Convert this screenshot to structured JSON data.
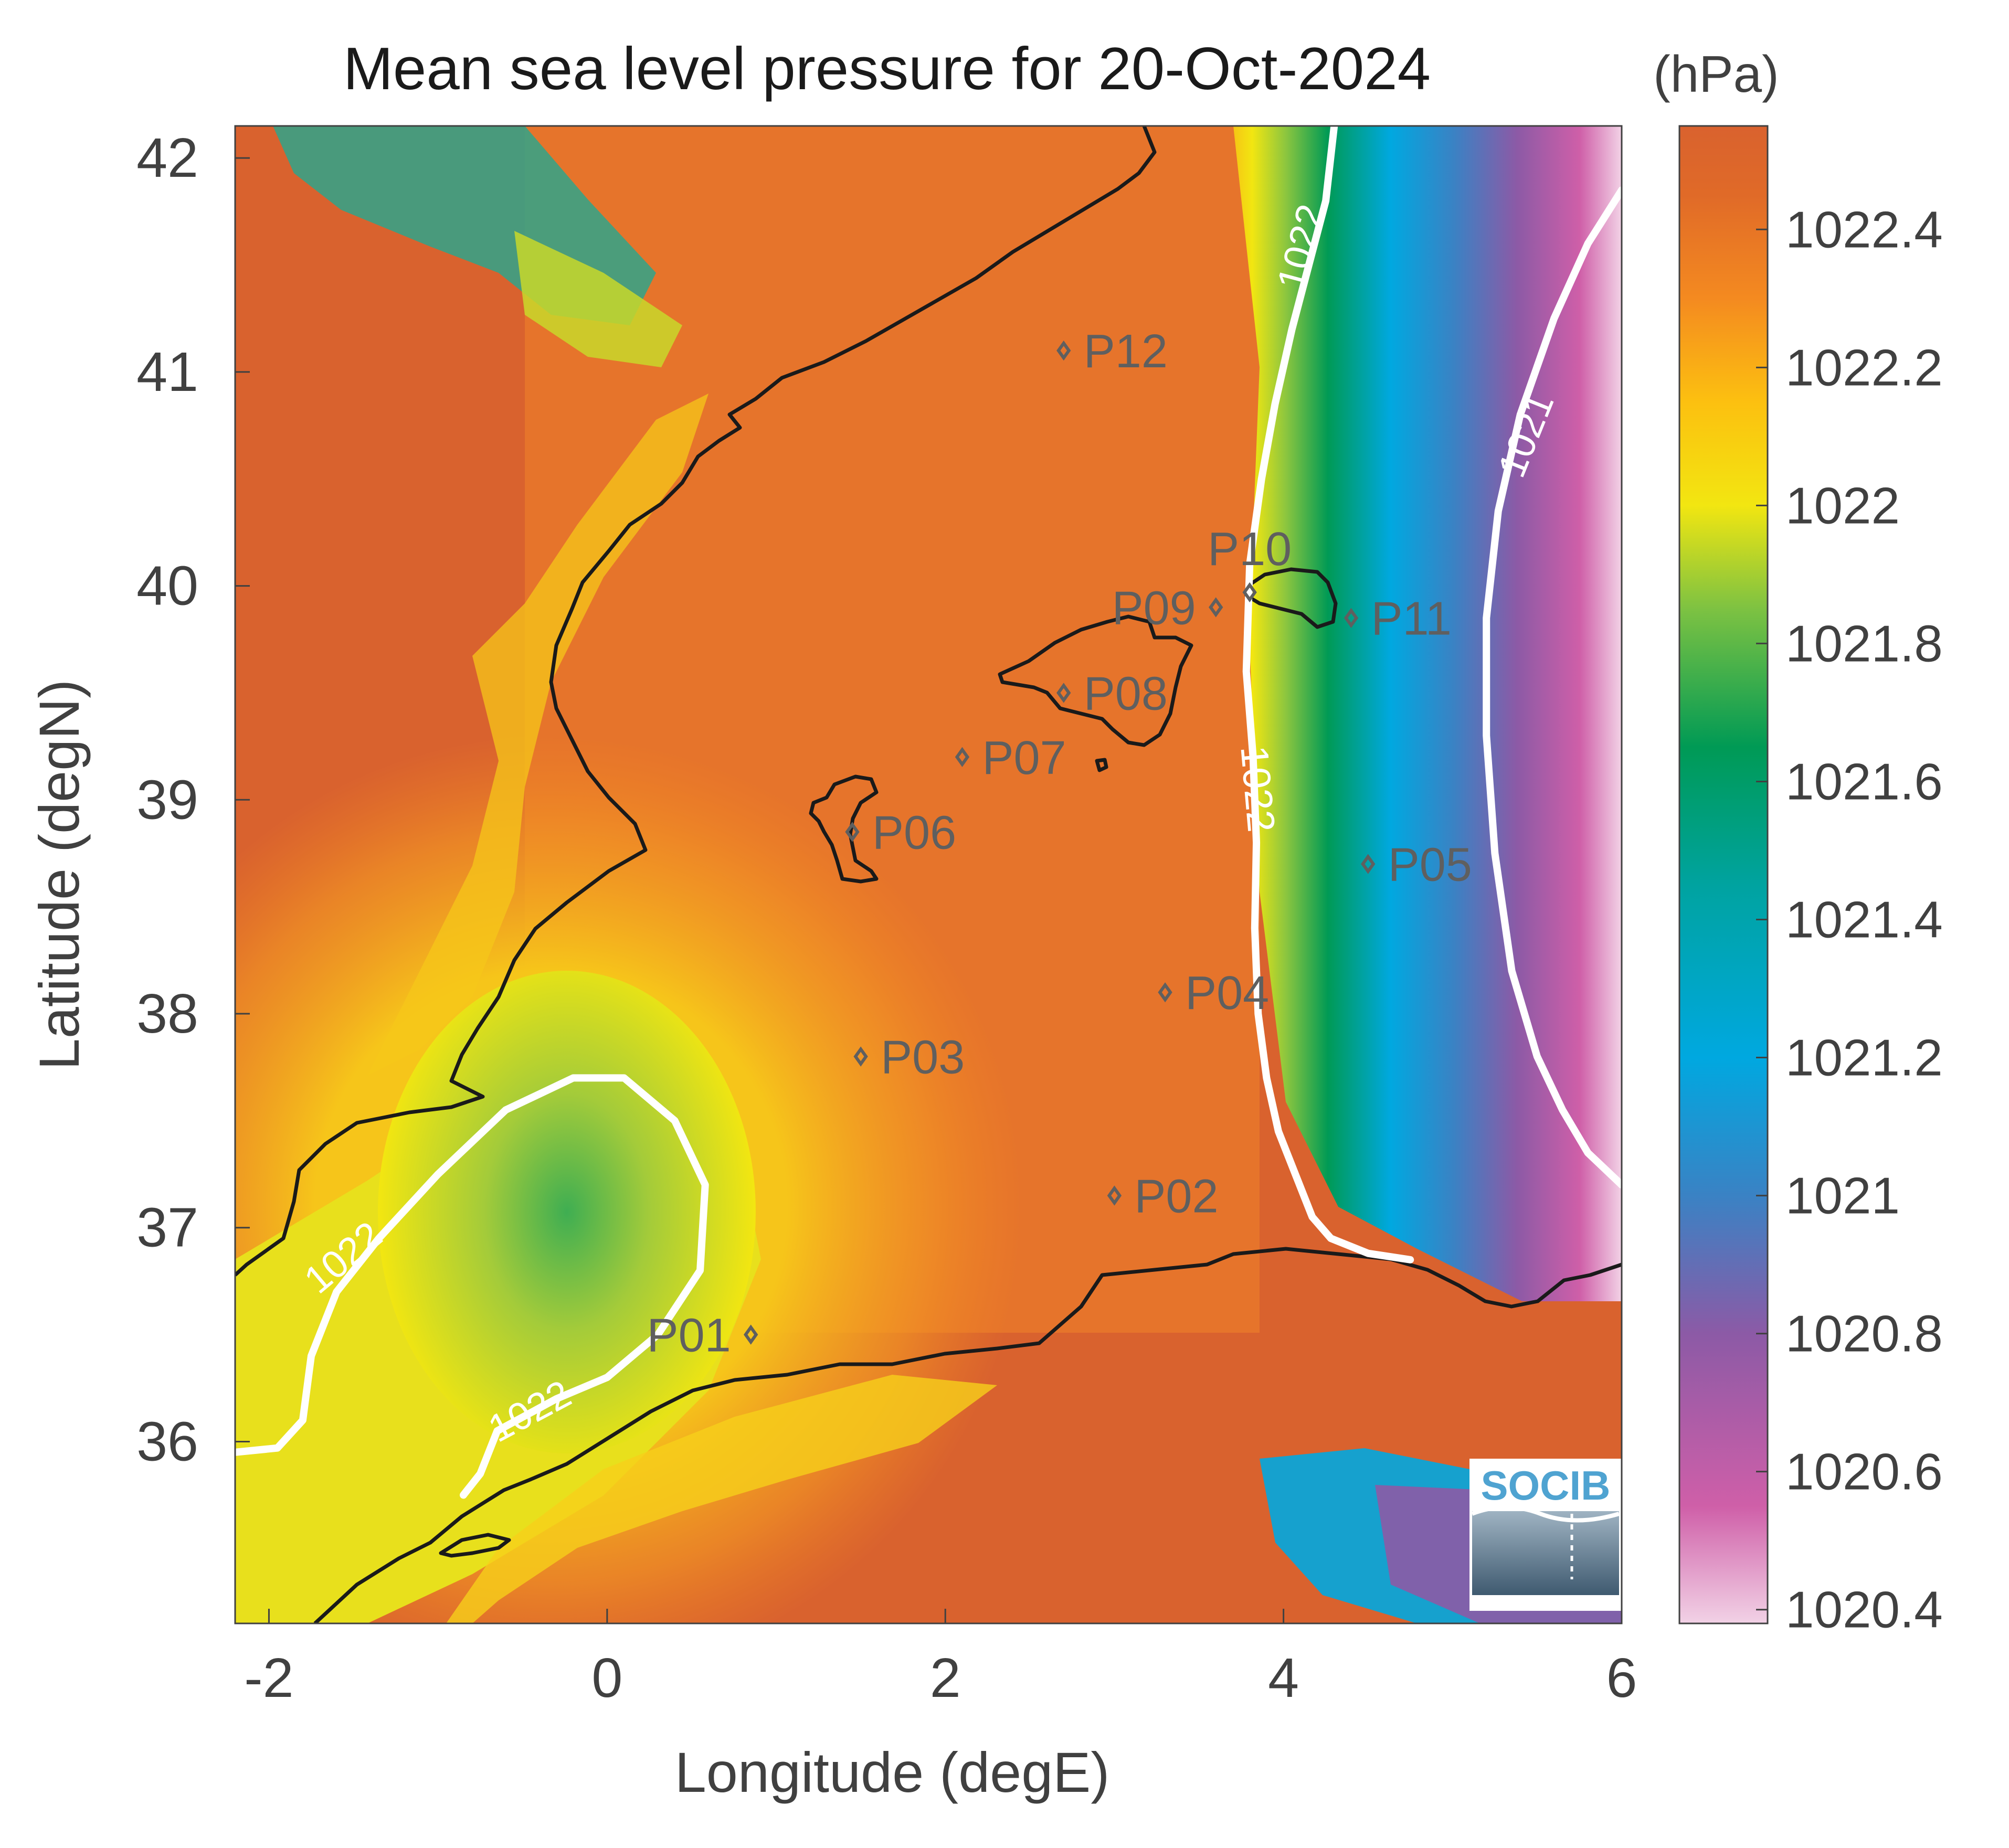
{
  "figure": {
    "title": "Mean sea level pressure for 20-Oct-2024",
    "units": "(hPa)",
    "xlabel": "Longitude (degE)",
    "ylabel": "Latitude (degN)",
    "logo": "SOCIB"
  },
  "chart_data": {
    "type": "heatmap",
    "variable": "mean sea level pressure",
    "xlim": [
      -2.2,
      6.0
    ],
    "ylim": [
      35.15,
      42.15
    ],
    "x_ticks": [
      {
        "value": -2,
        "label": "-2"
      },
      {
        "value": 0,
        "label": "0"
      },
      {
        "value": 2,
        "label": "2"
      },
      {
        "value": 4,
        "label": "4"
      },
      {
        "value": 6,
        "label": "6"
      }
    ],
    "y_ticks": [
      {
        "value": 36,
        "label": "36"
      },
      {
        "value": 37,
        "label": "37"
      },
      {
        "value": 38,
        "label": "38"
      },
      {
        "value": 39,
        "label": "39"
      },
      {
        "value": 40,
        "label": "40"
      },
      {
        "value": 41,
        "label": "41"
      },
      {
        "value": 42,
        "label": "42"
      }
    ],
    "colorbar": {
      "range": [
        1020.38,
        1022.55
      ],
      "ticks": [
        {
          "value": 1020.4,
          "label": "1020.4"
        },
        {
          "value": 1020.6,
          "label": "1020.6"
        },
        {
          "value": 1020.8,
          "label": "1020.8"
        },
        {
          "value": 1021.0,
          "label": "1021"
        },
        {
          "value": 1021.2,
          "label": "1021.2"
        },
        {
          "value": 1021.4,
          "label": "1021.4"
        },
        {
          "value": 1021.6,
          "label": "1021.6"
        },
        {
          "value": 1021.8,
          "label": "1021.8"
        },
        {
          "value": 1022.0,
          "label": "1022"
        },
        {
          "value": 1022.2,
          "label": "1022.2"
        },
        {
          "value": 1022.4,
          "label": "1022.4"
        }
      ],
      "colors": [
        {
          "value": 1020.38,
          "color": "#f2d2e6"
        },
        {
          "value": 1020.55,
          "color": "#cf5fa8"
        },
        {
          "value": 1020.8,
          "color": "#8c5aa6"
        },
        {
          "value": 1021.0,
          "color": "#3a82c4"
        },
        {
          "value": 1021.2,
          "color": "#00a8e0"
        },
        {
          "value": 1021.45,
          "color": "#00a3a0"
        },
        {
          "value": 1021.65,
          "color": "#009a55"
        },
        {
          "value": 1021.85,
          "color": "#7dc242"
        },
        {
          "value": 1022.0,
          "color": "#f2e611"
        },
        {
          "value": 1022.15,
          "color": "#fcc010"
        },
        {
          "value": 1022.3,
          "color": "#f48a20"
        },
        {
          "value": 1022.45,
          "color": "#e06a28"
        },
        {
          "value": 1022.55,
          "color": "#d9622e"
        }
      ]
    },
    "contours": [
      {
        "level": 1022,
        "label": "1022",
        "lon": [
          4.3,
          4.25,
          4.15,
          4.05,
          3.95,
          3.87,
          3.8,
          3.78,
          3.82,
          3.84,
          3.83,
          3.85,
          3.9,
          3.97,
          4.07,
          4.17,
          4.28,
          4.5,
          4.75
        ],
        "lat": [
          42.15,
          41.8,
          41.5,
          41.2,
          40.85,
          40.5,
          40.1,
          39.6,
          39.2,
          38.8,
          38.4,
          38.0,
          37.7,
          37.45,
          37.25,
          37.05,
          36.95,
          36.88,
          36.85
        ],
        "labels": [
          {
            "lon": 4.12,
            "lat": 41.58,
            "angle": -75
          },
          {
            "lon": 3.83,
            "lat": 39.05,
            "angle": 85
          }
        ]
      },
      {
        "level": 1021,
        "label": "1021",
        "lon": [
          6.0,
          5.8,
          5.6,
          5.4,
          5.27,
          5.2,
          5.2,
          5.25,
          5.35,
          5.5,
          5.65,
          5.8,
          6.0
        ],
        "lat": [
          41.85,
          41.6,
          41.25,
          40.8,
          40.35,
          39.85,
          39.3,
          38.75,
          38.2,
          37.8,
          37.55,
          37.35,
          37.2
        ],
        "labels": [
          {
            "lon": 5.45,
            "lat": 40.7,
            "angle": -68
          }
        ]
      },
      {
        "level": 1022,
        "label": "1022",
        "lon": [
          -2.2,
          -1.95,
          -1.8,
          -1.75,
          -1.6,
          -1.35,
          -1.0,
          -0.6,
          -0.2,
          0.1,
          0.4,
          0.58,
          0.55,
          0.3,
          0.0,
          -0.3,
          -0.65,
          -0.75,
          -0.85
        ],
        "lat": [
          35.95,
          35.97,
          36.1,
          36.4,
          36.7,
          36.95,
          37.25,
          37.55,
          37.7,
          37.7,
          37.5,
          37.2,
          36.8,
          36.5,
          36.3,
          36.2,
          36.05,
          35.85,
          35.75
        ],
        "labels": [
          {
            "lon": -1.55,
            "lat": 36.85,
            "angle": -40
          },
          {
            "lon": -0.45,
            "lat": 36.13,
            "angle": -28
          }
        ]
      }
    ],
    "stations": [
      {
        "name": "P01",
        "lon": 0.85,
        "lat": 36.5,
        "label_side": "left"
      },
      {
        "name": "P02",
        "lon": 3.0,
        "lat": 37.15,
        "label_side": "right"
      },
      {
        "name": "P03",
        "lon": 1.5,
        "lat": 37.8,
        "label_side": "right"
      },
      {
        "name": "P04",
        "lon": 3.3,
        "lat": 38.1,
        "label_side": "right"
      },
      {
        "name": "P05",
        "lon": 4.5,
        "lat": 38.7,
        "label_side": "right"
      },
      {
        "name": "P06",
        "lon": 1.45,
        "lat": 38.85,
        "label_side": "right"
      },
      {
        "name": "P07",
        "lon": 2.1,
        "lat": 39.2,
        "label_side": "right"
      },
      {
        "name": "P08",
        "lon": 2.7,
        "lat": 39.5,
        "label_side": "right"
      },
      {
        "name": "P09",
        "lon": 3.6,
        "lat": 39.9,
        "label_side": "left"
      },
      {
        "name": "P10",
        "lon": 3.8,
        "lat": 39.97,
        "label_side": "above"
      },
      {
        "name": "P11",
        "lon": 4.4,
        "lat": 39.85,
        "label_side": "right"
      },
      {
        "name": "P12",
        "lon": 2.7,
        "lat": 41.1,
        "label_side": "right"
      }
    ]
  }
}
